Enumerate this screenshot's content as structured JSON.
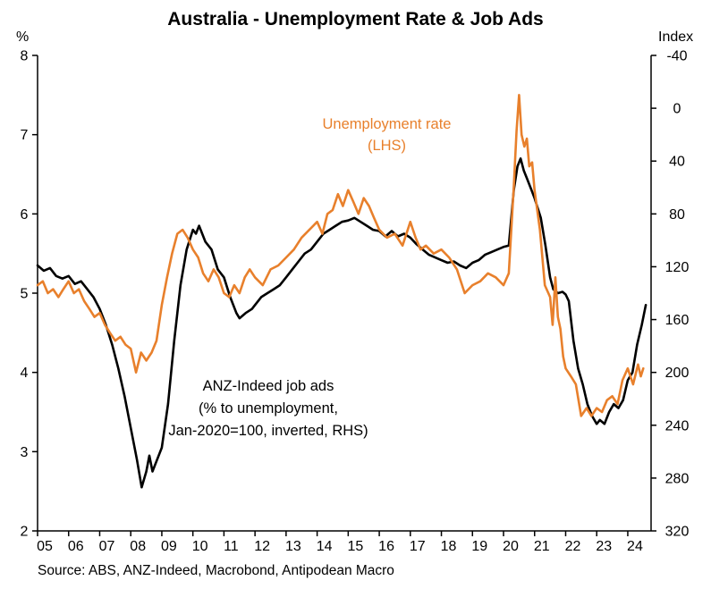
{
  "title": "Australia - Unemployment Rate & Job Ads",
  "left_axis_unit": "%",
  "right_axis_unit": "Index",
  "source": "Source: ABS, ANZ-Indeed, Macrobond, Antipodean Macro",
  "annotations": {
    "unemployment": [
      "Unemployment rate",
      "(LHS)"
    ],
    "jobads": [
      "ANZ-Indeed job ads",
      "(% to unemployment,",
      "Jan-2020=100, inverted, RHS)"
    ]
  },
  "colors": {
    "unemployment": "#E8802C",
    "job_ads": "#000000"
  },
  "chart_data": {
    "type": "line",
    "title": "Australia - Unemployment Rate & Job Ads",
    "x_range": [
      2005,
      2024.75
    ],
    "x_tick_labels": [
      "05",
      "06",
      "07",
      "08",
      "09",
      "10",
      "11",
      "12",
      "13",
      "14",
      "15",
      "16",
      "17",
      "18",
      "19",
      "20",
      "21",
      "22",
      "23",
      "24"
    ],
    "left_axis": {
      "label": "%",
      "range": [
        2,
        8
      ],
      "ticks": [
        8,
        7,
        6,
        5,
        4,
        3,
        2
      ],
      "inverted": false
    },
    "right_axis": {
      "label": "Index",
      "range": [
        -40,
        320
      ],
      "ticks": [
        -40,
        0,
        40,
        80,
        120,
        160,
        200,
        240,
        280,
        320
      ],
      "inverted": true
    },
    "grid": false,
    "series": [
      {
        "id": "job_ads",
        "name": "ANZ-Indeed job ads (% to unemployment, Jan-2020=100, inverted, RHS)",
        "axis": "right",
        "color": "#000000",
        "points": [
          [
            2005.0,
            119
          ],
          [
            2005.2,
            123
          ],
          [
            2005.4,
            121
          ],
          [
            2005.6,
            127
          ],
          [
            2005.8,
            129
          ],
          [
            2006.0,
            127
          ],
          [
            2006.2,
            133
          ],
          [
            2006.4,
            131
          ],
          [
            2006.6,
            137
          ],
          [
            2006.8,
            143
          ],
          [
            2007.0,
            152
          ],
          [
            2007.2,
            164
          ],
          [
            2007.4,
            179
          ],
          [
            2007.6,
            197
          ],
          [
            2007.8,
            218
          ],
          [
            2008.0,
            242
          ],
          [
            2008.2,
            266
          ],
          [
            2008.35,
            287
          ],
          [
            2008.5,
            275
          ],
          [
            2008.6,
            263
          ],
          [
            2008.7,
            275
          ],
          [
            2008.85,
            266
          ],
          [
            2009.0,
            257
          ],
          [
            2009.2,
            224
          ],
          [
            2009.4,
            176
          ],
          [
            2009.6,
            134
          ],
          [
            2009.8,
            107
          ],
          [
            2010.0,
            92
          ],
          [
            2010.1,
            95
          ],
          [
            2010.2,
            89
          ],
          [
            2010.4,
            101
          ],
          [
            2010.6,
            107
          ],
          [
            2010.8,
            122
          ],
          [
            2011.0,
            128
          ],
          [
            2011.2,
            143
          ],
          [
            2011.4,
            155
          ],
          [
            2011.5,
            159
          ],
          [
            2011.7,
            155
          ],
          [
            2011.9,
            152
          ],
          [
            2012.0,
            149
          ],
          [
            2012.2,
            143
          ],
          [
            2012.4,
            140
          ],
          [
            2012.6,
            137
          ],
          [
            2012.8,
            134
          ],
          [
            2013.0,
            128
          ],
          [
            2013.2,
            122
          ],
          [
            2013.4,
            116
          ],
          [
            2013.6,
            110
          ],
          [
            2013.8,
            107
          ],
          [
            2014.0,
            101
          ],
          [
            2014.2,
            95
          ],
          [
            2014.4,
            92
          ],
          [
            2014.6,
            89
          ],
          [
            2014.8,
            86
          ],
          [
            2015.0,
            85
          ],
          [
            2015.2,
            83
          ],
          [
            2015.4,
            86
          ],
          [
            2015.6,
            89
          ],
          [
            2015.8,
            92
          ],
          [
            2016.0,
            93
          ],
          [
            2016.2,
            97
          ],
          [
            2016.4,
            93
          ],
          [
            2016.6,
            97
          ],
          [
            2016.8,
            95
          ],
          [
            2017.0,
            98
          ],
          [
            2017.2,
            103
          ],
          [
            2017.4,
            107
          ],
          [
            2017.6,
            111
          ],
          [
            2017.8,
            113
          ],
          [
            2018.0,
            115
          ],
          [
            2018.2,
            117
          ],
          [
            2018.4,
            116
          ],
          [
            2018.6,
            119
          ],
          [
            2018.8,
            121
          ],
          [
            2019.0,
            117
          ],
          [
            2019.2,
            115
          ],
          [
            2019.4,
            111
          ],
          [
            2019.6,
            109
          ],
          [
            2019.8,
            107
          ],
          [
            2020.0,
            105
          ],
          [
            2020.17,
            104
          ],
          [
            2020.33,
            62
          ],
          [
            2020.45,
            44
          ],
          [
            2020.55,
            38
          ],
          [
            2020.65,
            47
          ],
          [
            2020.75,
            53
          ],
          [
            2020.9,
            62
          ],
          [
            2021.0,
            68
          ],
          [
            2021.2,
            83
          ],
          [
            2021.35,
            104
          ],
          [
            2021.5,
            128
          ],
          [
            2021.6,
            137
          ],
          [
            2021.75,
            140
          ],
          [
            2021.9,
            139
          ],
          [
            2022.0,
            141
          ],
          [
            2022.1,
            146
          ],
          [
            2022.25,
            176
          ],
          [
            2022.4,
            197
          ],
          [
            2022.55,
            209
          ],
          [
            2022.7,
            224
          ],
          [
            2022.85,
            233
          ],
          [
            2023.0,
            239
          ],
          [
            2023.1,
            236
          ],
          [
            2023.25,
            239
          ],
          [
            2023.4,
            230
          ],
          [
            2023.55,
            224
          ],
          [
            2023.7,
            227
          ],
          [
            2023.85,
            221
          ],
          [
            2024.0,
            206
          ],
          [
            2024.15,
            200
          ],
          [
            2024.3,
            179
          ],
          [
            2024.45,
            164
          ],
          [
            2024.58,
            149
          ]
        ]
      },
      {
        "id": "unemployment",
        "name": "Unemployment rate (LHS)",
        "axis": "left",
        "color": "#E8802C",
        "points": [
          [
            2005.0,
            5.1
          ],
          [
            2005.17,
            5.15
          ],
          [
            2005.33,
            5.0
          ],
          [
            2005.5,
            5.05
          ],
          [
            2005.67,
            4.95
          ],
          [
            2005.83,
            5.05
          ],
          [
            2006.0,
            5.15
          ],
          [
            2006.17,
            5.0
          ],
          [
            2006.33,
            5.05
          ],
          [
            2006.5,
            4.9
          ],
          [
            2006.67,
            4.8
          ],
          [
            2006.83,
            4.7
          ],
          [
            2007.0,
            4.75
          ],
          [
            2007.17,
            4.6
          ],
          [
            2007.33,
            4.5
          ],
          [
            2007.5,
            4.4
          ],
          [
            2007.67,
            4.45
          ],
          [
            2007.83,
            4.35
          ],
          [
            2008.0,
            4.3
          ],
          [
            2008.17,
            4.0
          ],
          [
            2008.33,
            4.25
          ],
          [
            2008.5,
            4.15
          ],
          [
            2008.67,
            4.25
          ],
          [
            2008.83,
            4.4
          ],
          [
            2009.0,
            4.85
          ],
          [
            2009.17,
            5.2
          ],
          [
            2009.33,
            5.5
          ],
          [
            2009.5,
            5.75
          ],
          [
            2009.67,
            5.8
          ],
          [
            2009.83,
            5.7
          ],
          [
            2010.0,
            5.55
          ],
          [
            2010.17,
            5.45
          ],
          [
            2010.33,
            5.25
          ],
          [
            2010.5,
            5.15
          ],
          [
            2010.67,
            5.3
          ],
          [
            2010.83,
            5.2
          ],
          [
            2011.0,
            5.0
          ],
          [
            2011.17,
            4.95
          ],
          [
            2011.33,
            5.1
          ],
          [
            2011.5,
            5.0
          ],
          [
            2011.67,
            5.2
          ],
          [
            2011.83,
            5.3
          ],
          [
            2012.0,
            5.2
          ],
          [
            2012.25,
            5.1
          ],
          [
            2012.5,
            5.3
          ],
          [
            2012.75,
            5.35
          ],
          [
            2013.0,
            5.45
          ],
          [
            2013.25,
            5.55
          ],
          [
            2013.5,
            5.7
          ],
          [
            2013.75,
            5.8
          ],
          [
            2014.0,
            5.9
          ],
          [
            2014.17,
            5.75
          ],
          [
            2014.33,
            6.0
          ],
          [
            2014.5,
            6.05
          ],
          [
            2014.67,
            6.25
          ],
          [
            2014.83,
            6.1
          ],
          [
            2015.0,
            6.3
          ],
          [
            2015.17,
            6.15
          ],
          [
            2015.33,
            6.0
          ],
          [
            2015.5,
            6.2
          ],
          [
            2015.67,
            6.1
          ],
          [
            2015.83,
            5.95
          ],
          [
            2016.0,
            5.8
          ],
          [
            2016.25,
            5.7
          ],
          [
            2016.5,
            5.75
          ],
          [
            2016.75,
            5.6
          ],
          [
            2017.0,
            5.9
          ],
          [
            2017.17,
            5.7
          ],
          [
            2017.33,
            5.55
          ],
          [
            2017.5,
            5.6
          ],
          [
            2017.75,
            5.5
          ],
          [
            2018.0,
            5.55
          ],
          [
            2018.25,
            5.45
          ],
          [
            2018.5,
            5.3
          ],
          [
            2018.75,
            5.0
          ],
          [
            2019.0,
            5.1
          ],
          [
            2019.25,
            5.15
          ],
          [
            2019.5,
            5.25
          ],
          [
            2019.75,
            5.2
          ],
          [
            2020.0,
            5.1
          ],
          [
            2020.17,
            5.25
          ],
          [
            2020.33,
            6.35
          ],
          [
            2020.42,
            7.05
          ],
          [
            2020.5,
            7.5
          ],
          [
            2020.58,
            7.0
          ],
          [
            2020.67,
            6.85
          ],
          [
            2020.75,
            6.95
          ],
          [
            2020.83,
            6.6
          ],
          [
            2020.92,
            6.65
          ],
          [
            2021.0,
            6.3
          ],
          [
            2021.17,
            5.8
          ],
          [
            2021.33,
            5.1
          ],
          [
            2021.5,
            4.95
          ],
          [
            2021.58,
            4.6
          ],
          [
            2021.67,
            5.2
          ],
          [
            2021.75,
            4.7
          ],
          [
            2021.83,
            4.55
          ],
          [
            2021.92,
            4.2
          ],
          [
            2022.0,
            4.05
          ],
          [
            2022.17,
            3.95
          ],
          [
            2022.33,
            3.85
          ],
          [
            2022.5,
            3.45
          ],
          [
            2022.67,
            3.55
          ],
          [
            2022.83,
            3.45
          ],
          [
            2023.0,
            3.55
          ],
          [
            2023.17,
            3.5
          ],
          [
            2023.33,
            3.65
          ],
          [
            2023.5,
            3.7
          ],
          [
            2023.67,
            3.6
          ],
          [
            2023.83,
            3.9
          ],
          [
            2024.0,
            4.05
          ],
          [
            2024.17,
            3.85
          ],
          [
            2024.33,
            4.1
          ],
          [
            2024.42,
            3.95
          ],
          [
            2024.5,
            4.05
          ]
        ]
      }
    ]
  }
}
